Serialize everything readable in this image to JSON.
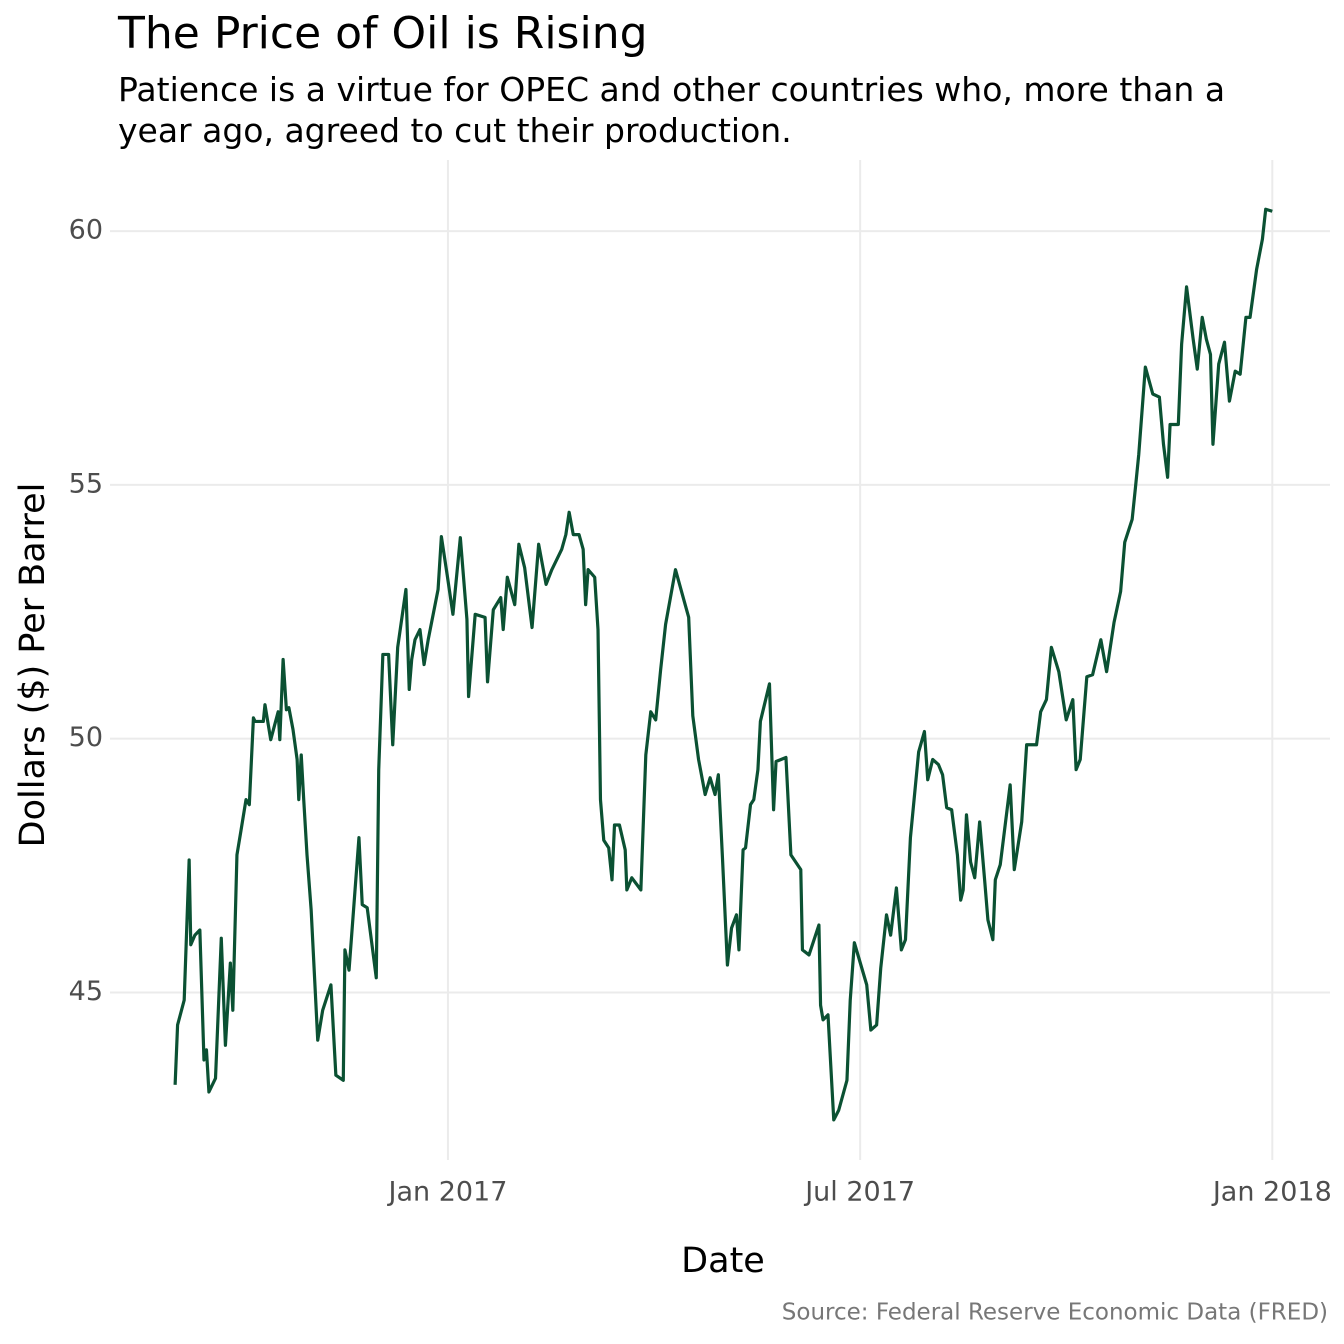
{
  "chart_data": {
    "type": "line",
    "title": "The Price of Oil is Rising",
    "subtitle": "Patience is a virtue for OPEC and other countries who, more than a year ago, agreed to cut their production.",
    "caption": "Source: Federal Reserve Economic Data (FRED)",
    "xlabel": "Date",
    "ylabel": "Dollars ($) Per Barrel",
    "grid": true,
    "xlim": [
      2016.59,
      2018.07
    ],
    "xticks": [
      {
        "value": 2017,
        "label": "Jan 2017"
      },
      {
        "value": 2017.5,
        "label": "Jul 2017"
      },
      {
        "value": 2018,
        "label": "Jan 2018"
      }
    ],
    "ylim": [
      41.7,
      61.4
    ],
    "yticks": [
      45,
      50,
      55,
      60
    ],
    "series": [
      {
        "color": "#0b5133",
        "x": [
          2016.669,
          2016.672,
          2016.68,
          2016.686,
          2016.688,
          2016.693,
          2016.699,
          2016.704,
          2016.707,
          2016.71,
          2016.718,
          2016.725,
          2016.73,
          2016.736,
          2016.739,
          2016.744,
          2016.749,
          2016.755,
          2016.759,
          2016.764,
          2016.766,
          2016.776,
          2016.778,
          2016.785,
          2016.794,
          2016.796,
          2016.8,
          2016.804,
          2016.807,
          2016.812,
          2016.817,
          2016.819,
          2016.822,
          2016.825,
          2016.829,
          2016.834,
          2016.842,
          2016.848,
          2016.858,
          2016.864,
          2016.873,
          2016.875,
          2016.88,
          2016.892,
          2016.896,
          2016.902,
          2016.913,
          2016.916,
          2016.921,
          2016.928,
          2016.933,
          2016.939,
          2016.949,
          2016.953,
          2016.956,
          2016.96,
          2016.966,
          2016.971,
          2016.976,
          2016.988,
          2016.992,
          2016.999,
          2017.006,
          2017.015,
          2017.023,
          2017.025,
          2017.033,
          2017.045,
          2017.048,
          2017.055,
          2017.064,
          2017.067,
          2017.072,
          2017.081,
          2017.086,
          2017.093,
          2017.102,
          2017.11,
          2017.119,
          2017.126,
          2017.138,
          2017.143,
          2017.147,
          2017.152,
          2017.159,
          2017.164,
          2017.167,
          2017.17,
          2017.178,
          2017.182,
          2017.185,
          2017.189,
          2017.195,
          2017.199,
          2017.202,
          2017.208,
          2017.215,
          2017.217,
          2017.223,
          2017.234,
          2017.24,
          2017.246,
          2017.252,
          2017.258,
          2017.264,
          2017.276,
          2017.292,
          2017.297,
          2017.304,
          2017.312,
          2017.318,
          2017.324,
          2017.328,
          2017.333,
          2017.339,
          2017.344,
          2017.35,
          2017.353,
          2017.358,
          2017.361,
          2017.367,
          2017.371,
          2017.376,
          2017.379,
          2017.39,
          2017.395,
          2017.398,
          2017.41,
          2017.416,
          2017.428,
          2017.43,
          2017.438,
          2017.45,
          2017.452,
          2017.455,
          2017.461,
          2017.468,
          2017.474,
          2017.484,
          2017.488,
          2017.493,
          2017.508,
          2017.513,
          2017.52,
          2017.525,
          2017.532,
          2017.537,
          2017.544,
          2017.55,
          2017.555,
          2017.561,
          2017.571,
          2017.578,
          2017.582,
          2017.588,
          2017.595,
          2017.6,
          2017.605,
          2017.611,
          2017.618,
          2017.622,
          2017.625,
          2017.629,
          2017.634,
          2017.639,
          2017.645,
          2017.651,
          2017.655,
          2017.661,
          2017.664,
          2017.67,
          2017.682,
          2017.687,
          2017.696,
          2017.702,
          2017.714,
          2017.719,
          2017.726,
          2017.732,
          2017.741,
          2017.75,
          2017.758,
          2017.762,
          2017.767,
          2017.775,
          2017.782,
          2017.792,
          2017.799,
          2017.808,
          2017.816,
          2017.821,
          2017.83,
          2017.834,
          2017.838,
          2017.846,
          2017.855,
          2017.863,
          2017.868,
          2017.873,
          2017.876,
          2017.886,
          2017.89,
          2017.896,
          2017.904,
          2017.909,
          2017.915,
          2017.92,
          2017.925,
          2017.928,
          2017.935,
          2017.942,
          2017.948,
          2017.955,
          2017.961,
          2017.968,
          2017.973,
          2017.981,
          2017.988,
          2017.992,
          2018.0
        ],
        "values": [
          43.18,
          44.36,
          44.85,
          47.61,
          45.94,
          46.13,
          46.23,
          43.67,
          43.87,
          43.04,
          43.31,
          46.07,
          43.96,
          45.58,
          44.65,
          47.71,
          48.2,
          48.8,
          48.7,
          50.41,
          50.34,
          50.34,
          50.67,
          49.98,
          50.53,
          49.98,
          51.56,
          50.57,
          50.61,
          50.18,
          49.59,
          48.8,
          49.68,
          48.8,
          47.71,
          46.63,
          44.06,
          44.65,
          45.15,
          43.37,
          43.27,
          45.84,
          45.44,
          48.05,
          46.73,
          46.67,
          45.29,
          49.39,
          51.66,
          51.66,
          49.88,
          51.8,
          52.94,
          50.97,
          51.56,
          51.95,
          52.15,
          51.46,
          51.95,
          52.94,
          53.98,
          53.23,
          52.45,
          53.96,
          52.35,
          50.83,
          52.45,
          52.39,
          51.12,
          52.54,
          52.78,
          52.15,
          53.18,
          52.64,
          53.83,
          53.37,
          52.19,
          53.83,
          53.04,
          53.33,
          53.73,
          54.02,
          54.46,
          54.02,
          54.02,
          53.73,
          52.64,
          53.33,
          53.18,
          52.15,
          48.8,
          48.0,
          47.85,
          47.22,
          48.3,
          48.3,
          47.81,
          47.02,
          47.26,
          47.02,
          49.68,
          50.53,
          50.37,
          51.36,
          52.25,
          53.33,
          52.39,
          50.45,
          49.59,
          48.9,
          49.23,
          48.9,
          49.29,
          47.65,
          45.54,
          46.27,
          46.53,
          45.84,
          47.81,
          47.85,
          48.7,
          48.8,
          49.39,
          50.34,
          51.08,
          48.6,
          49.55,
          49.63,
          47.71,
          47.42,
          45.84,
          45.74,
          46.33,
          44.75,
          44.46,
          44.56,
          42.49,
          42.68,
          43.27,
          44.85,
          45.98,
          45.15,
          44.26,
          44.36,
          45.48,
          46.53,
          46.13,
          47.06,
          45.84,
          46.04,
          48.05,
          49.74,
          50.14,
          49.19,
          49.59,
          49.49,
          49.29,
          48.64,
          48.6,
          47.71,
          46.82,
          47.02,
          48.5,
          47.57,
          47.26,
          48.36,
          47.22,
          46.43,
          46.04,
          47.22,
          47.52,
          49.09,
          47.42,
          48.36,
          49.88,
          49.88,
          50.53,
          50.77,
          51.8,
          51.32,
          50.37,
          50.77,
          49.39,
          49.59,
          51.22,
          51.26,
          51.95,
          51.32,
          52.29,
          52.9,
          53.87,
          54.32,
          54.95,
          55.6,
          57.32,
          56.79,
          56.73,
          55.8,
          55.15,
          56.19,
          56.19,
          57.77,
          58.9,
          57.87,
          57.28,
          58.3,
          57.87,
          57.57,
          55.8,
          57.38,
          57.81,
          56.65,
          57.24,
          57.18,
          58.3,
          58.3,
          59.25,
          59.84,
          60.43,
          60.39
        ]
      }
    ]
  }
}
